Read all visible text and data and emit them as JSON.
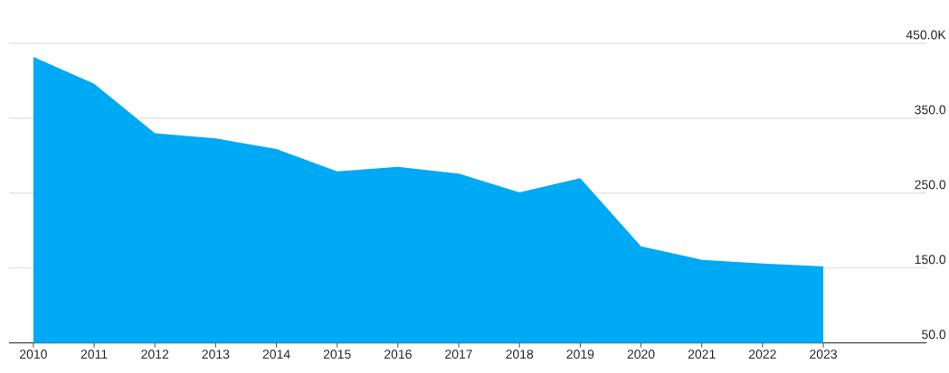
{
  "chart_data": {
    "type": "area",
    "x": [
      2010,
      2011,
      2012,
      2013,
      2014,
      2015,
      2016,
      2017,
      2018,
      2019,
      2020,
      2021,
      2022,
      2023
    ],
    "values": [
      432,
      396,
      330,
      323,
      309,
      279,
      285,
      276,
      251,
      270,
      179,
      161,
      156,
      152
    ],
    "color": "#00a9f4",
    "xlim": [
      2009.6,
      2024.7
    ],
    "xticks": [
      2010,
      2011,
      2012,
      2013,
      2014,
      2015,
      2016,
      2017,
      2018,
      2019,
      2020,
      2021,
      2022,
      2023
    ],
    "ylim": [
      50,
      450
    ],
    "yticks": [
      {
        "value": 50,
        "label": "50.0"
      },
      {
        "value": 150,
        "label": "150.0"
      },
      {
        "value": 250,
        "label": "250.0"
      },
      {
        "value": 350,
        "label": "350.0"
      },
      {
        "value": 450,
        "label": "450.0K"
      }
    ],
    "grid": "y"
  }
}
